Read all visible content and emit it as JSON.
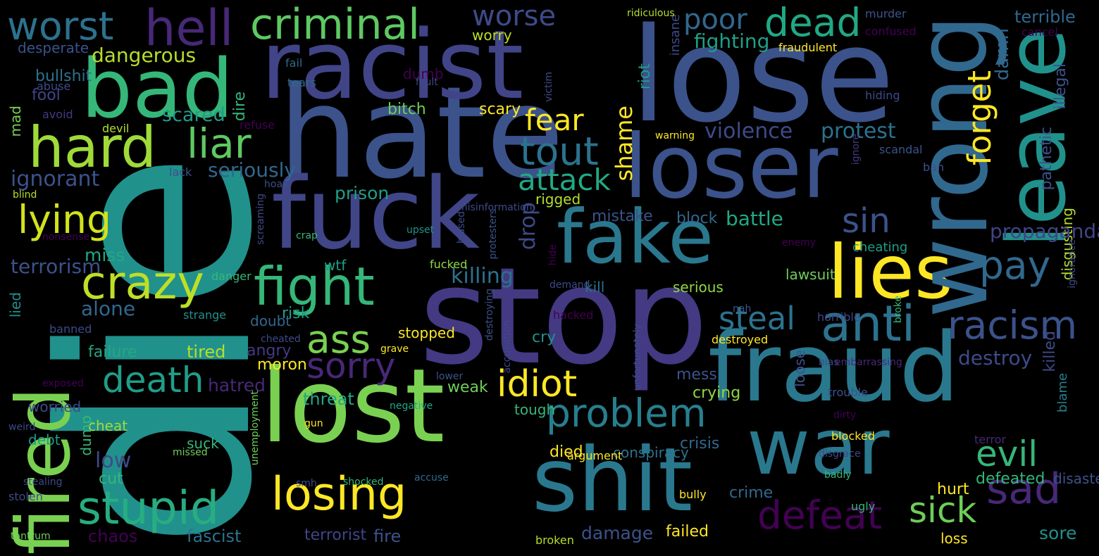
{
  "palette": {
    "background": "#000000",
    "purple": "#440154",
    "indigo": "#3b528b",
    "blue": "#31688e",
    "teal": "#21918c",
    "green": "#35b779",
    "lime": "#90d743",
    "yellow": "#fde725"
  },
  "words": [
    {
      "text": "die",
      "color": "#21918c"
    },
    {
      "text": "stop",
      "color": "#443983"
    },
    {
      "text": "hate",
      "color": "#3b528b"
    },
    {
      "text": "lose",
      "color": "#3b528b"
    },
    {
      "text": "racist",
      "color": "#414487"
    },
    {
      "text": "loser",
      "color": "#3b528b"
    },
    {
      "text": "fuck",
      "color": "#404688"
    },
    {
      "text": "lost",
      "color": "#7ad151"
    },
    {
      "text": "shit",
      "color": "#2a788e"
    },
    {
      "text": "fraud",
      "color": "#2a788e"
    },
    {
      "text": "war",
      "color": "#2a788e"
    },
    {
      "text": "fake",
      "color": "#2a788e"
    },
    {
      "text": "lies",
      "color": "#fde725"
    },
    {
      "text": "bad",
      "color": "#35b779"
    },
    {
      "text": "wrong",
      "color": "#31688e"
    },
    {
      "text": "leave",
      "color": "#21918c"
    },
    {
      "text": "fired",
      "color": "#7ad151"
    },
    {
      "text": "hard",
      "color": "#a0da39"
    },
    {
      "text": "hell",
      "color": "#482878"
    },
    {
      "text": "worst",
      "color": "#2c728e"
    },
    {
      "text": "criminal",
      "color": "#5ec962"
    },
    {
      "text": "worse",
      "color": "#3e4a89"
    },
    {
      "text": "dead",
      "color": "#22a884"
    },
    {
      "text": "poor",
      "color": "#31688e"
    },
    {
      "text": "anti",
      "color": "#2c728e"
    },
    {
      "text": "racism",
      "color": "#3b528b"
    },
    {
      "text": "sad",
      "color": "#482878"
    },
    {
      "text": "pay",
      "color": "#31688e"
    },
    {
      "text": "fight",
      "color": "#35b779"
    },
    {
      "text": "crazy",
      "color": "#bddf26"
    },
    {
      "text": "liar",
      "color": "#5ec962"
    },
    {
      "text": "lying",
      "color": "#d2e21b"
    },
    {
      "text": "tout",
      "color": "#2c728e"
    },
    {
      "text": "sorry",
      "color": "#482878"
    },
    {
      "text": "ass",
      "color": "#7ad151"
    },
    {
      "text": "death",
      "color": "#1f9e89"
    },
    {
      "text": "stupid",
      "color": "#27ad81"
    },
    {
      "text": "losing",
      "color": "#fde725"
    },
    {
      "text": "problem",
      "color": "#277f8e"
    },
    {
      "text": "idiot",
      "color": "#fde725"
    },
    {
      "text": "defeat",
      "color": "#440154"
    },
    {
      "text": "evil",
      "color": "#35b779"
    },
    {
      "text": "sick",
      "color": "#6ece58"
    },
    {
      "text": "steal",
      "color": "#2c728e"
    },
    {
      "text": "forget",
      "color": "#fde725"
    },
    {
      "text": "sin",
      "color": "#3b528b"
    },
    {
      "text": "fear",
      "color": "#fde725"
    },
    {
      "text": "attack",
      "color": "#22a884"
    },
    {
      "text": "violence",
      "color": "#3e4a89"
    },
    {
      "text": "protest",
      "color": "#2c728e"
    },
    {
      "text": "dangerous",
      "color": "#b5de2b"
    },
    {
      "text": "shame",
      "color": "#fde725"
    },
    {
      "text": "fighting",
      "color": "#1f9e89"
    },
    {
      "text": "damn",
      "color": "#31688e"
    },
    {
      "text": "pathetic",
      "color": "#3b528b"
    },
    {
      "text": "terrible",
      "color": "#31688e"
    },
    {
      "text": "illegal",
      "color": "#3b528b"
    },
    {
      "text": "disgusting",
      "color": "#b5de2b"
    },
    {
      "text": "propaganda",
      "color": "#414487"
    },
    {
      "text": "killed",
      "color": "#3e4a89"
    },
    {
      "text": "destroy",
      "color": "#3e4a89"
    },
    {
      "text": "blame",
      "color": "#277f8e"
    },
    {
      "text": "ignorant",
      "color": "#3b528b"
    },
    {
      "text": "seriously",
      "color": "#31688e"
    },
    {
      "text": "prison",
      "color": "#1f9e89"
    },
    {
      "text": "bullshit",
      "color": "#2c728e"
    },
    {
      "text": "fool",
      "color": "#414487"
    },
    {
      "text": "mad",
      "color": "#7ad151"
    },
    {
      "text": "desperate",
      "color": "#3b528b"
    },
    {
      "text": "worry",
      "color": "#bddf26"
    },
    {
      "text": "scared",
      "color": "#1f9e89"
    },
    {
      "text": "dire",
      "color": "#35b779"
    },
    {
      "text": "dumb",
      "color": "#440154"
    },
    {
      "text": "bitch",
      "color": "#6ece58"
    },
    {
      "text": "scary",
      "color": "#fde725"
    },
    {
      "text": "riot",
      "color": "#1f9e89"
    },
    {
      "text": "insane",
      "color": "#3e4a89"
    },
    {
      "text": "terrorism",
      "color": "#3b528b"
    },
    {
      "text": "miss",
      "color": "#22a884"
    },
    {
      "text": "alone",
      "color": "#31688e"
    },
    {
      "text": "failure",
      "color": "#22a884"
    },
    {
      "text": "tired",
      "color": "#b5de2b"
    },
    {
      "text": "hatred",
      "color": "#482878"
    },
    {
      "text": "threat",
      "color": "#22a884"
    },
    {
      "text": "killing",
      "color": "#2c728e"
    },
    {
      "text": "wtf",
      "color": "#1f9e89"
    },
    {
      "text": "risk",
      "color": "#1f9e89"
    },
    {
      "text": "doubt",
      "color": "#31688e"
    },
    {
      "text": "stopped",
      "color": "#fde725"
    },
    {
      "text": "angry",
      "color": "#443983"
    },
    {
      "text": "moron",
      "color": "#fde725"
    },
    {
      "text": "weak",
      "color": "#6ece58"
    },
    {
      "text": "tough",
      "color": "#35b779"
    },
    {
      "text": "cry",
      "color": "#21918c"
    },
    {
      "text": "drop",
      "color": "#3e4a89"
    },
    {
      "text": "rigged",
      "color": "#b5de2b"
    },
    {
      "text": "mistake",
      "color": "#3b528b"
    },
    {
      "text": "block",
      "color": "#31688e"
    },
    {
      "text": "battle",
      "color": "#22a884"
    },
    {
      "text": "kill",
      "color": "#2c728e"
    },
    {
      "text": "serious",
      "color": "#8fd744"
    },
    {
      "text": "lawsuit",
      "color": "#6ece58"
    },
    {
      "text": "mess",
      "color": "#3b528b"
    },
    {
      "text": "crying",
      "color": "#8fd744"
    },
    {
      "text": "crisis",
      "color": "#31688e"
    },
    {
      "text": "conspiracy",
      "color": "#2c728e"
    },
    {
      "text": "died",
      "color": "#fde725"
    },
    {
      "text": "crime",
      "color": "#31688e"
    },
    {
      "text": "damage",
      "color": "#3b528b"
    },
    {
      "text": "failed",
      "color": "#fde725"
    },
    {
      "text": "cheating",
      "color": "#1f9e89"
    },
    {
      "text": "loose",
      "color": "#3b528b"
    },
    {
      "text": "defeated",
      "color": "#35b779"
    },
    {
      "text": "disaster",
      "color": "#3b528b"
    },
    {
      "text": "hurt",
      "color": "#fde725"
    },
    {
      "text": "sore",
      "color": "#21918c"
    },
    {
      "text": "loss",
      "color": "#fde725"
    },
    {
      "text": "chaos",
      "color": "#440154"
    },
    {
      "text": "fascist",
      "color": "#2c728e"
    },
    {
      "text": "terrorist",
      "color": "#414487"
    },
    {
      "text": "fire",
      "color": "#3b528b"
    },
    {
      "text": "low",
      "color": "#3e4a89"
    },
    {
      "text": "cut",
      "color": "#35b779"
    },
    {
      "text": "cheat",
      "color": "#a0da39"
    },
    {
      "text": "debt",
      "color": "#1f9e89"
    },
    {
      "text": "suck",
      "color": "#35b779"
    },
    {
      "text": "dump",
      "color": "#35b779"
    },
    {
      "text": "worried",
      "color": "#3e4a89"
    },
    {
      "text": "lied",
      "color": "#21918c"
    },
    {
      "text": "ridiculous",
      "color": "#b5de2b"
    },
    {
      "text": "murder",
      "color": "#3b528b"
    },
    {
      "text": "cancel",
      "color": "#440154"
    },
    {
      "text": "fraudulent",
      "color": "#fde725"
    },
    {
      "text": "confused",
      "color": "#440154"
    },
    {
      "text": "fail",
      "color": "#31688e"
    },
    {
      "text": "tears",
      "color": "#31688e"
    },
    {
      "text": "fault",
      "color": "#3e4a89"
    },
    {
      "text": "abuse",
      "color": "#3e4a89"
    },
    {
      "text": "avoid",
      "color": "#443983"
    },
    {
      "text": "victim",
      "color": "#3e4a89"
    },
    {
      "text": "hiding",
      "color": "#3e4a89"
    },
    {
      "text": "devil",
      "color": "#b5de2b"
    },
    {
      "text": "refuse",
      "color": "#440154"
    },
    {
      "text": "warning",
      "color": "#fde725"
    },
    {
      "text": "ignore",
      "color": "#443983"
    },
    {
      "text": "scandal",
      "color": "#3b528b"
    },
    {
      "text": "ban",
      "color": "#3b528b"
    },
    {
      "text": "lack",
      "color": "#3b528b"
    },
    {
      "text": "hoax",
      "color": "#3b528b"
    },
    {
      "text": "blind",
      "color": "#b5de2b"
    },
    {
      "text": "misinformation",
      "color": "#3e4a89"
    },
    {
      "text": "biased",
      "color": "#3e4a89"
    },
    {
      "text": "screaming",
      "color": "#3e4a89"
    },
    {
      "text": "upset",
      "color": "#21918c"
    },
    {
      "text": "nonsense",
      "color": "#440154"
    },
    {
      "text": "crap",
      "color": "#35b779"
    },
    {
      "text": "protesters",
      "color": "#3b528b"
    },
    {
      "text": "enemy",
      "color": "#440154"
    },
    {
      "text": "ignorance",
      "color": "#3e4a89"
    },
    {
      "text": "danger",
      "color": "#35b779"
    },
    {
      "text": "fucked",
      "color": "#8fd744"
    },
    {
      "text": "hide",
      "color": "#440154"
    },
    {
      "text": "demand",
      "color": "#3e4a89"
    },
    {
      "text": "strange",
      "color": "#21918c"
    },
    {
      "text": "hacked",
      "color": "#440154"
    },
    {
      "text": "nah",
      "color": "#3b528b"
    },
    {
      "text": "broke",
      "color": "#35b779"
    },
    {
      "text": "banned",
      "color": "#3e4a89"
    },
    {
      "text": "cheated",
      "color": "#3e4a89"
    },
    {
      "text": "horrible",
      "color": "#3e4a89"
    },
    {
      "text": "destroyed",
      "color": "#fde725"
    },
    {
      "text": "grave",
      "color": "#fde725"
    },
    {
      "text": "destroying",
      "color": "#3b528b"
    },
    {
      "text": "accusation",
      "color": "#3e4a89"
    },
    {
      "text": "unfortunately",
      "color": "#3e4a89"
    },
    {
      "text": "bias",
      "color": "#3e4a89"
    },
    {
      "text": "exposed",
      "color": "#440154"
    },
    {
      "text": "lower",
      "color": "#3b528b"
    },
    {
      "text": "embarrassing",
      "color": "#482878"
    },
    {
      "text": "negative",
      "color": "#22a884"
    },
    {
      "text": "trouble",
      "color": "#3b528b"
    },
    {
      "text": "weird",
      "color": "#3e4a89"
    },
    {
      "text": "unemployment",
      "color": "#6ece58"
    },
    {
      "text": "gun",
      "color": "#fde725"
    },
    {
      "text": "dirty",
      "color": "#440154"
    },
    {
      "text": "missed",
      "color": "#6ece58"
    },
    {
      "text": "argument",
      "color": "#fde725"
    },
    {
      "text": "blocked",
      "color": "#fde725"
    },
    {
      "text": "terror",
      "color": "#482878"
    },
    {
      "text": "disgrace",
      "color": "#3e4a89"
    },
    {
      "text": "badly",
      "color": "#35b779"
    },
    {
      "text": "stealing",
      "color": "#3e4a89"
    },
    {
      "text": "smh",
      "color": "#3e4a89"
    },
    {
      "text": "shocked",
      "color": "#35b779"
    },
    {
      "text": "accuse",
      "color": "#31688e"
    },
    {
      "text": "stolen",
      "color": "#3e4a89"
    },
    {
      "text": "bully",
      "color": "#fde725"
    },
    {
      "text": "ugly",
      "color": "#35b779"
    },
    {
      "text": "tantrum",
      "color": "#6ece58"
    },
    {
      "text": "broken",
      "color": "#b5de2b"
    }
  ]
}
